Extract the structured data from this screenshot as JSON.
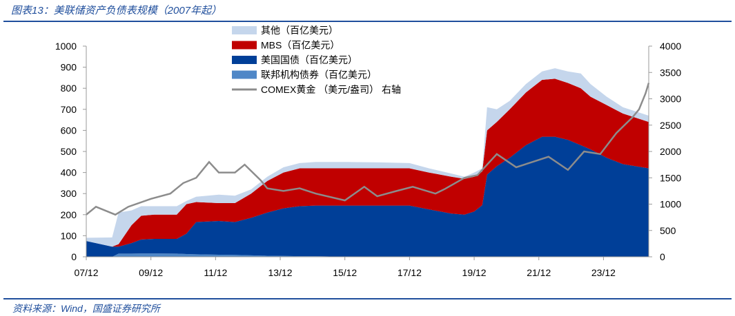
{
  "header": {
    "title": "图表13：美联储资产负债表规模（2007年起）"
  },
  "footer": {
    "source": "资料来源：Wind，国盛证券研究所"
  },
  "chart_data": {
    "type": "area",
    "title": "美联储资产负债表规模（2007年起）",
    "x": [
      2007.9,
      2008.7,
      2008.9,
      2009.3,
      2009.6,
      2010.0,
      2010.7,
      2011.0,
      2011.3,
      2012.0,
      2012.5,
      2013.0,
      2013.5,
      2014.0,
      2014.5,
      2015.0,
      2016.0,
      2017.0,
      2017.9,
      2018.5,
      2019.2,
      2019.6,
      2019.9,
      2020.15,
      2020.3,
      2020.6,
      2021.0,
      2021.5,
      2022.0,
      2022.4,
      2022.8,
      2023.2,
      2023.5,
      2024.0,
      2024.5,
      2025.3
    ],
    "x_ticks": [
      {
        "v": 2007.9,
        "label": "07/12"
      },
      {
        "v": 2009.9,
        "label": "09/12"
      },
      {
        "v": 2011.9,
        "label": "11/12"
      },
      {
        "v": 2013.9,
        "label": "13/12"
      },
      {
        "v": 2015.9,
        "label": "15/12"
      },
      {
        "v": 2017.9,
        "label": "17/12"
      },
      {
        "v": 2019.9,
        "label": "19/12"
      },
      {
        "v": 2021.9,
        "label": "21/12"
      },
      {
        "v": 2023.9,
        "label": "23/12"
      }
    ],
    "xlim": [
      2007.9,
      2025.3
    ],
    "ylim_left": [
      0,
      1000
    ],
    "y_ticks_left": [
      "0",
      "100",
      "200",
      "300",
      "400",
      "500",
      "600",
      "700",
      "800",
      "900",
      "1000"
    ],
    "ylim_right": [
      0,
      4000
    ],
    "y_ticks_right": [
      "0",
      "500",
      "1000",
      "1500",
      "2000",
      "2500",
      "3000",
      "3500",
      "4000"
    ],
    "stack_order": [
      "agency",
      "treasury",
      "mbs",
      "other"
    ],
    "series": {
      "agency": {
        "name": "联邦机构债券（百亿美元）",
        "color": "#4f87c7",
        "values": [
          0,
          0,
          15,
          15,
          16,
          16,
          15,
          13,
          12,
          10,
          9,
          7,
          5,
          4,
          3,
          3,
          0,
          0,
          0,
          0,
          0,
          0,
          0,
          0,
          0,
          0,
          0,
          0,
          0,
          0,
          0,
          0,
          0,
          0,
          0,
          0
        ]
      },
      "treasury": {
        "name": "美国国债（百亿美元）",
        "color": "#003f98",
        "values": [
          75,
          48,
          33,
          50,
          66,
          69,
          70,
          97,
          153,
          160,
          156,
          178,
          205,
          226,
          237,
          240,
          243,
          243,
          243,
          225,
          205,
          200,
          215,
          245,
          390,
          430,
          470,
          530,
          570,
          570,
          555,
          530,
          510,
          470,
          440,
          420
        ]
      },
      "mbs": {
        "name": "MBS（百亿美元）",
        "color": "#c00000",
        "values": [
          0,
          0,
          12,
          85,
          113,
          115,
          115,
          140,
          95,
          85,
          90,
          115,
          150,
          170,
          180,
          177,
          177,
          177,
          177,
          175,
          175,
          170,
          165,
          160,
          210,
          210,
          230,
          250,
          270,
          275,
          270,
          270,
          250,
          250,
          240,
          220
        ]
      },
      "other": {
        "name": "其他（百亿美元）",
        "color": "#c5d6ec",
        "values": [
          15,
          44,
          150,
          70,
          45,
          40,
          40,
          15,
          25,
          40,
          35,
          20,
          20,
          25,
          25,
          30,
          30,
          28,
          25,
          20,
          15,
          10,
          20,
          15,
          110,
          60,
          40,
          40,
          40,
          50,
          55,
          70,
          60,
          40,
          30,
          30
        ]
      }
    },
    "gold": {
      "name": "COMEX黄金 （美元/盎司） 右轴",
      "color": "#8c8c8c",
      "x": [
        2007.9,
        2008.2,
        2008.8,
        2009.2,
        2009.9,
        2010.5,
        2010.9,
        2011.3,
        2011.7,
        2012.0,
        2012.5,
        2012.8,
        2013.3,
        2013.5,
        2014.0,
        2014.5,
        2015.0,
        2015.9,
        2016.5,
        2016.9,
        2017.5,
        2018.0,
        2018.7,
        2019.0,
        2019.6,
        2020.0,
        2020.6,
        2021.2,
        2021.7,
        2022.2,
        2022.8,
        2023.3,
        2023.8,
        2024.3,
        2024.8,
        2025.0,
        2025.2,
        2025.3
      ],
      "values": [
        800,
        950,
        800,
        950,
        1100,
        1200,
        1400,
        1500,
        1800,
        1600,
        1600,
        1750,
        1450,
        1300,
        1250,
        1300,
        1200,
        1070,
        1330,
        1150,
        1250,
        1330,
        1200,
        1290,
        1500,
        1550,
        1950,
        1700,
        1800,
        1900,
        1650,
        2000,
        1950,
        2350,
        2650,
        2800,
        3100,
        3300
      ]
    }
  }
}
